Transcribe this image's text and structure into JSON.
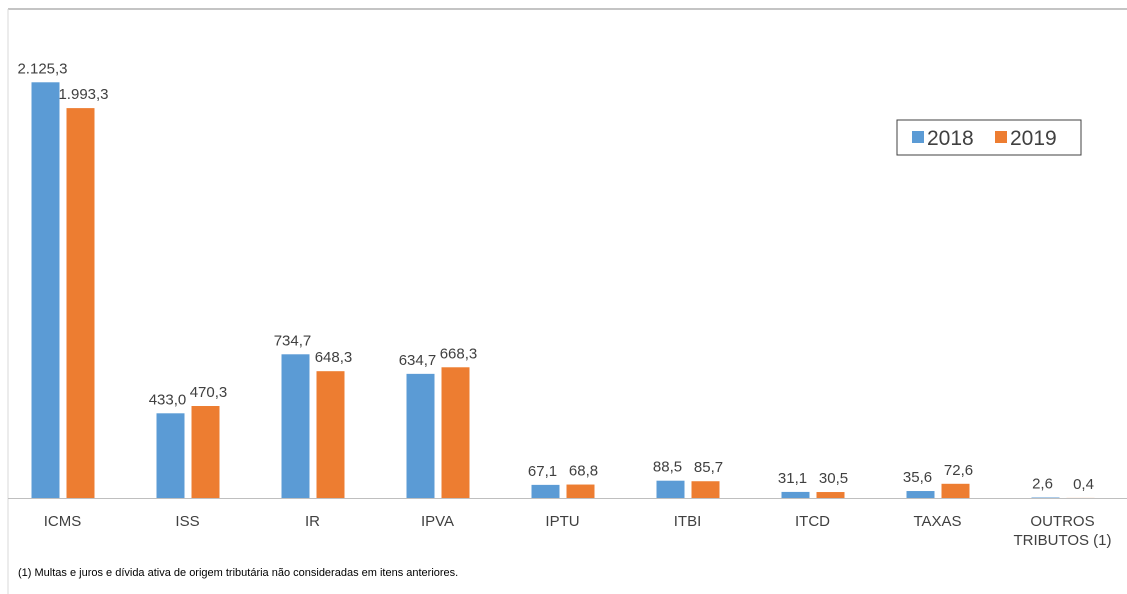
{
  "chart_data": {
    "type": "bar",
    "categories": [
      "ICMS",
      "ISS",
      "IR",
      "IPVA",
      "IPTU",
      "ITBI",
      "ITCD",
      "TAXAS",
      "OUTROS TRIBUTOS (1)"
    ],
    "series": [
      {
        "name": "2018",
        "color": "#5b9bd5",
        "values": [
          2125.3,
          433.0,
          734.7,
          634.7,
          67.1,
          88.5,
          31.1,
          35.6,
          2.6
        ],
        "value_labels": [
          "2.125,3",
          "433,0",
          "734,7",
          "634,7",
          "67,1",
          "88,5",
          "31,1",
          "35,6",
          "2,6"
        ]
      },
      {
        "name": "2019",
        "color": "#ed7d31",
        "values": [
          1993.3,
          470.3,
          648.3,
          668.3,
          68.8,
          85.7,
          30.5,
          72.6,
          0.4
        ],
        "value_labels": [
          "1.993,3",
          "470,3",
          "648,3",
          "668,3",
          "68,8",
          "85,7",
          "30,5",
          "72,6",
          "0,4"
        ]
      }
    ],
    "ylim": [
      0,
      2500
    ],
    "legend": "top-right",
    "footnote": "(1) Multas e juros e dívida ativa de origem tributária não consideradas em itens anteriores."
  }
}
